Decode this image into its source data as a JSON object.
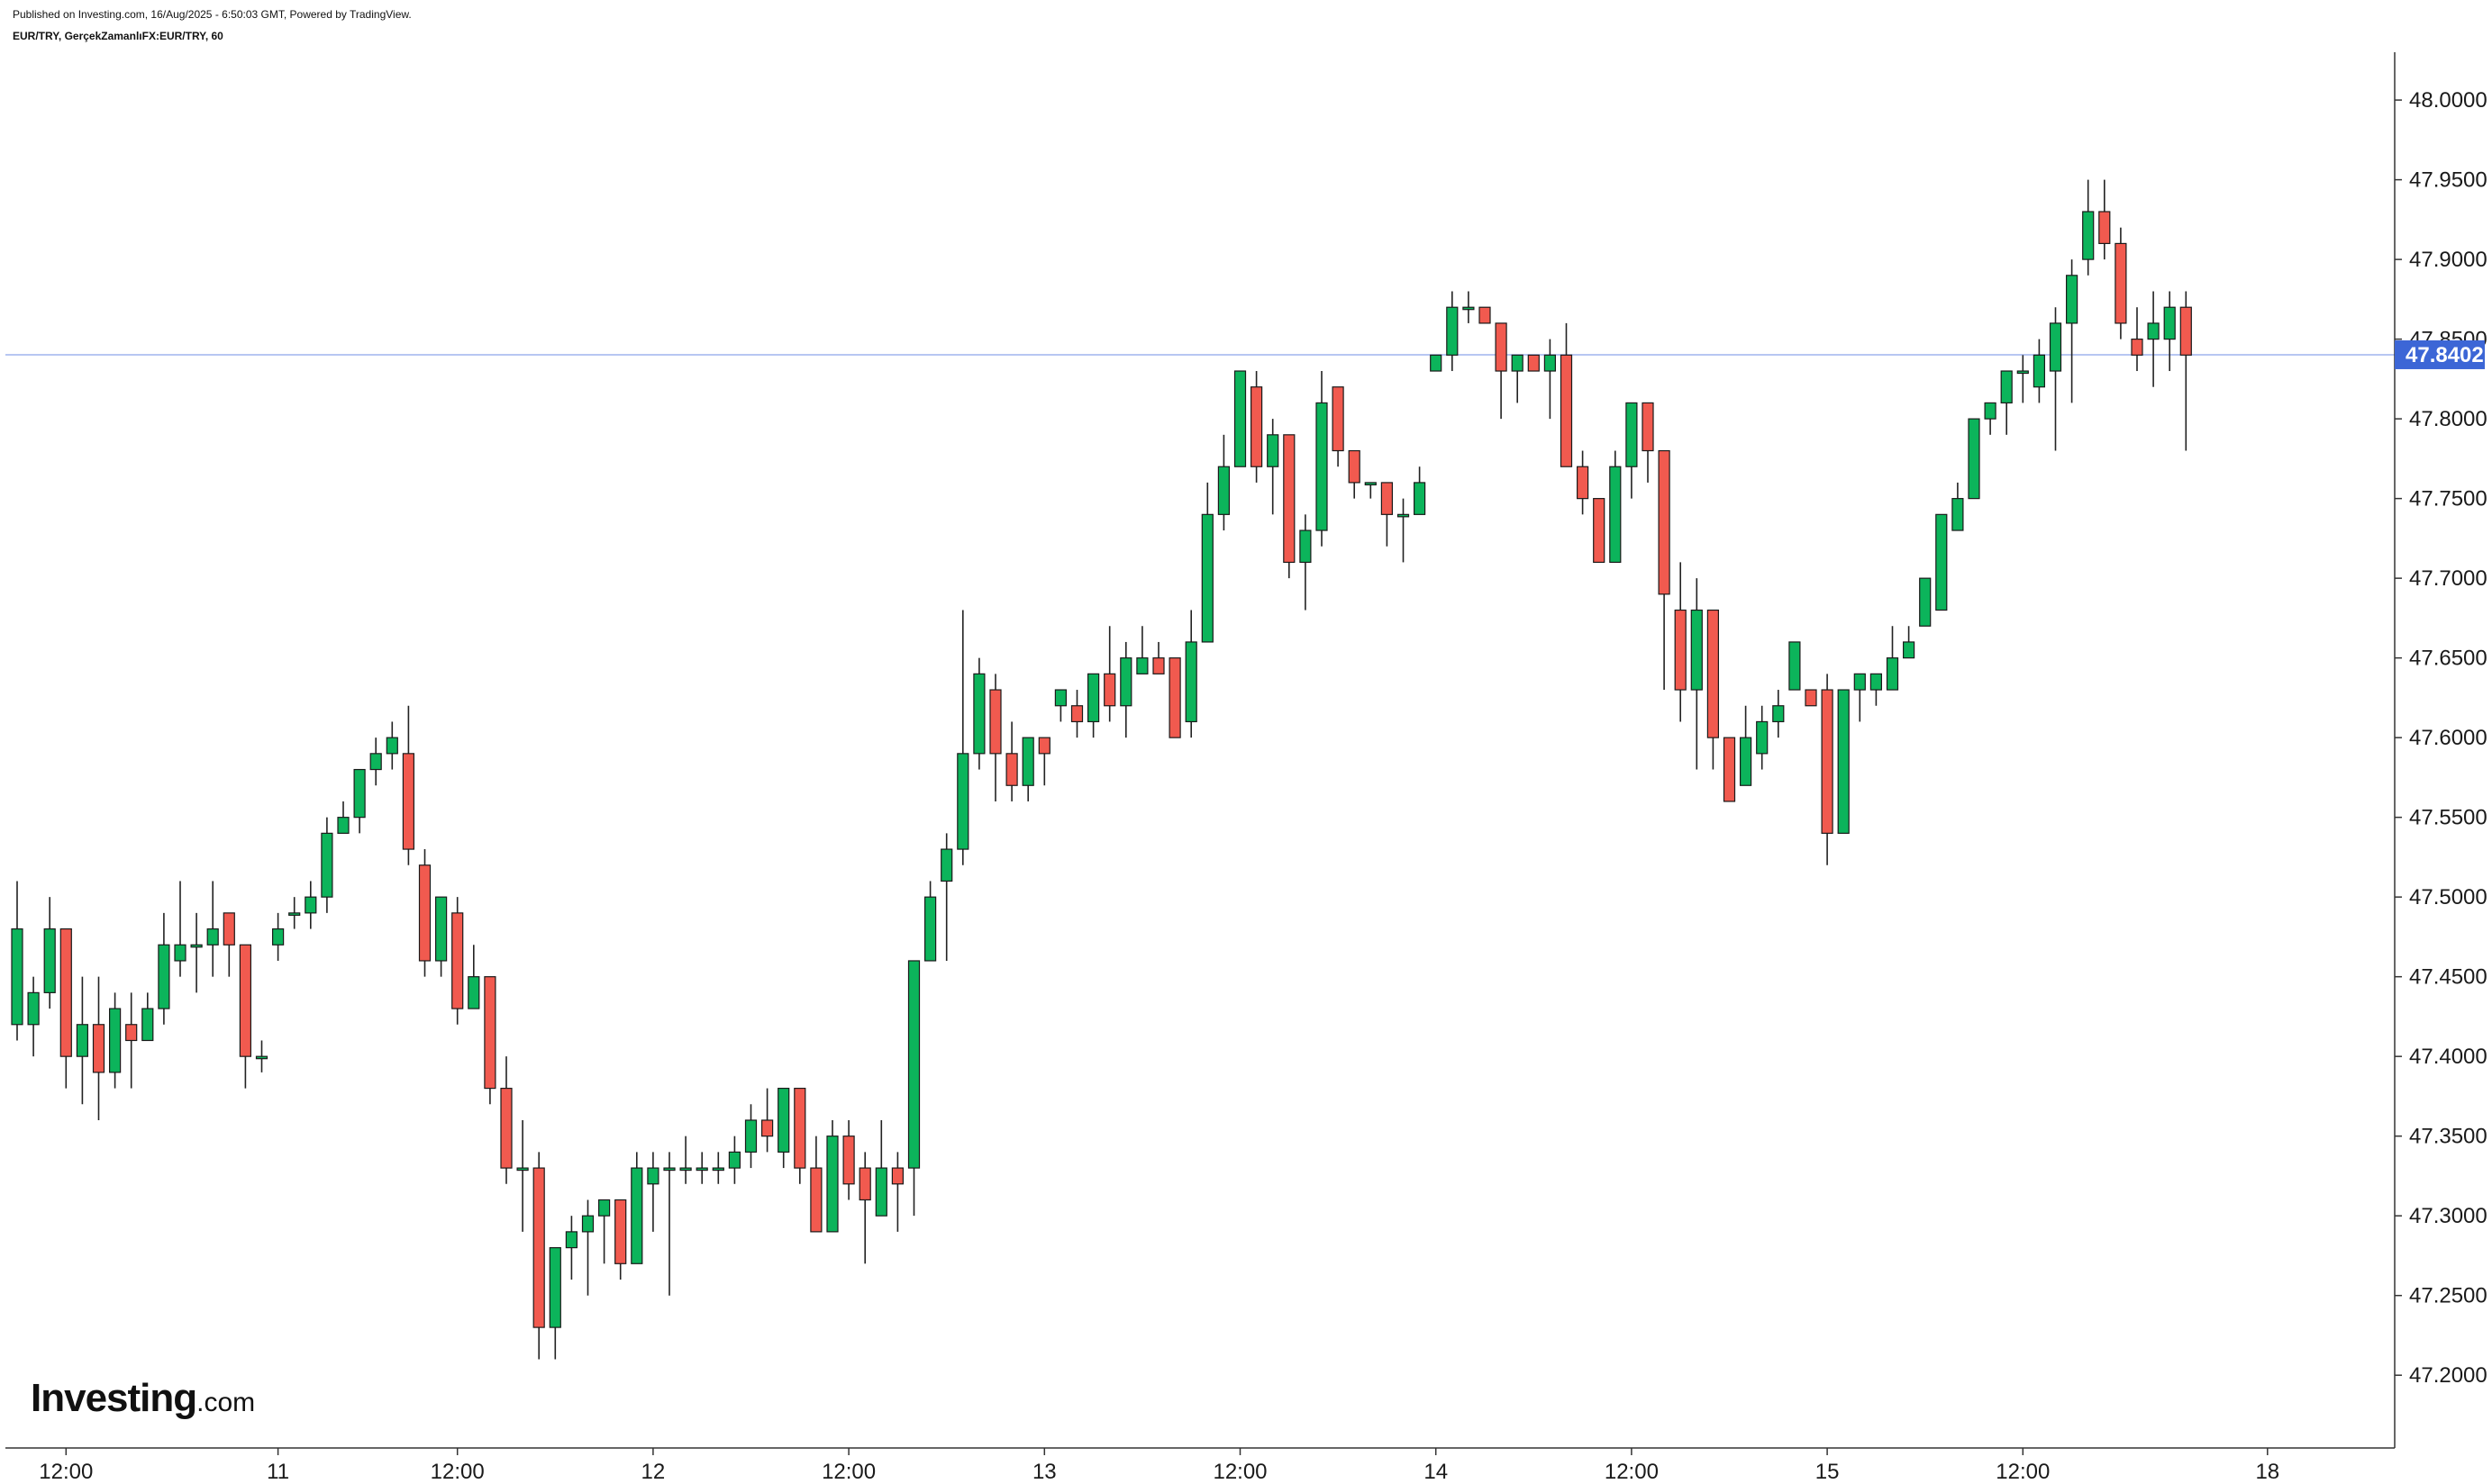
{
  "header": {
    "published": "Published on Investing.com, 16/Aug/2025 - 6:50:03 GMT, Powered by TradingView.",
    "symbol": "EUR/TRY, GerçekZamanlıFX:EUR/TRY, 60"
  },
  "logo": {
    "brand": "Investing",
    "domain": ".com"
  },
  "chart_data": {
    "type": "candlestick",
    "interval": "60",
    "ylim": [
      47.16,
      48.03
    ],
    "y_ticks": [
      "47.2000",
      "47.2500",
      "47.3000",
      "47.3500",
      "47.4000",
      "47.4500",
      "47.5000",
      "47.5500",
      "47.6000",
      "47.6500",
      "47.7000",
      "47.7500",
      "47.8000",
      "47.8500",
      "47.9000",
      "47.9500",
      "48.0000"
    ],
    "x_ticks": [
      "12:00",
      "11",
      "12:00",
      "12",
      "12:00",
      "13",
      "12:00",
      "14",
      "12:00",
      "15",
      "12:00",
      "18"
    ],
    "x_tick_bar_index": [
      3,
      16,
      27,
      39,
      51,
      63,
      75,
      87,
      99,
      111,
      123,
      138
    ],
    "current_price": "47.8402",
    "current_price_value": 47.8402,
    "grid": false,
    "colors": {
      "up": "#0cb45b",
      "down": "#f15a4f",
      "wick": "#222222",
      "price_line": "#9fb4ee",
      "price_label_bg": "#3c66d6",
      "axis": "#333333"
    },
    "candles": [
      {
        "o": 47.42,
        "h": 47.51,
        "l": 47.41,
        "c": 47.48
      },
      {
        "o": 47.42,
        "h": 47.45,
        "l": 47.4,
        "c": 47.44
      },
      {
        "o": 47.44,
        "h": 47.5,
        "l": 47.43,
        "c": 47.48
      },
      {
        "o": 47.48,
        "h": 47.48,
        "l": 47.38,
        "c": 47.4
      },
      {
        "o": 47.4,
        "h": 47.45,
        "l": 47.37,
        "c": 47.42
      },
      {
        "o": 47.42,
        "h": 47.45,
        "l": 47.36,
        "c": 47.39
      },
      {
        "o": 47.39,
        "h": 47.44,
        "l": 47.38,
        "c": 47.43
      },
      {
        "o": 47.42,
        "h": 47.44,
        "l": 47.38,
        "c": 47.41
      },
      {
        "o": 47.41,
        "h": 47.44,
        "l": 47.41,
        "c": 47.43
      },
      {
        "o": 47.43,
        "h": 47.49,
        "l": 47.42,
        "c": 47.47
      },
      {
        "o": 47.46,
        "h": 47.51,
        "l": 47.45,
        "c": 47.47
      },
      {
        "o": 47.47,
        "h": 47.49,
        "l": 47.44,
        "c": 47.47
      },
      {
        "o": 47.47,
        "h": 47.51,
        "l": 47.45,
        "c": 47.48
      },
      {
        "o": 47.49,
        "h": 47.49,
        "l": 47.45,
        "c": 47.47
      },
      {
        "o": 47.47,
        "h": 47.47,
        "l": 47.38,
        "c": 47.4
      },
      {
        "o": 47.4,
        "h": 47.41,
        "l": 47.39,
        "c": 47.4
      },
      {
        "o": 47.47,
        "h": 47.49,
        "l": 47.46,
        "c": 47.48
      },
      {
        "o": 47.49,
        "h": 47.5,
        "l": 47.48,
        "c": 47.49
      },
      {
        "o": 47.49,
        "h": 47.51,
        "l": 47.48,
        "c": 47.5
      },
      {
        "o": 47.5,
        "h": 47.55,
        "l": 47.49,
        "c": 47.54
      },
      {
        "o": 47.54,
        "h": 47.56,
        "l": 47.54,
        "c": 47.55
      },
      {
        "o": 47.55,
        "h": 47.58,
        "l": 47.54,
        "c": 47.58
      },
      {
        "o": 47.58,
        "h": 47.6,
        "l": 47.57,
        "c": 47.59
      },
      {
        "o": 47.59,
        "h": 47.61,
        "l": 47.58,
        "c": 47.6
      },
      {
        "o": 47.59,
        "h": 47.62,
        "l": 47.52,
        "c": 47.53
      },
      {
        "o": 47.52,
        "h": 47.53,
        "l": 47.45,
        "c": 47.46
      },
      {
        "o": 47.46,
        "h": 47.5,
        "l": 47.45,
        "c": 47.5
      },
      {
        "o": 47.49,
        "h": 47.5,
        "l": 47.42,
        "c": 47.43
      },
      {
        "o": 47.43,
        "h": 47.47,
        "l": 47.43,
        "c": 47.45
      },
      {
        "o": 47.45,
        "h": 47.45,
        "l": 47.37,
        "c": 47.38
      },
      {
        "o": 47.38,
        "h": 47.4,
        "l": 47.32,
        "c": 47.33
      },
      {
        "o": 47.33,
        "h": 47.36,
        "l": 47.29,
        "c": 47.33
      },
      {
        "o": 47.33,
        "h": 47.34,
        "l": 47.21,
        "c": 47.23
      },
      {
        "o": 47.23,
        "h": 47.28,
        "l": 47.21,
        "c": 47.28
      },
      {
        "o": 47.28,
        "h": 47.3,
        "l": 47.26,
        "c": 47.29
      },
      {
        "o": 47.29,
        "h": 47.31,
        "l": 47.25,
        "c": 47.3
      },
      {
        "o": 47.3,
        "h": 47.31,
        "l": 47.27,
        "c": 47.31
      },
      {
        "o": 47.31,
        "h": 47.31,
        "l": 47.26,
        "c": 47.27
      },
      {
        "o": 47.27,
        "h": 47.34,
        "l": 47.27,
        "c": 47.33
      },
      {
        "o": 47.32,
        "h": 47.34,
        "l": 47.29,
        "c": 47.33
      },
      {
        "o": 47.33,
        "h": 47.34,
        "l": 47.25,
        "c": 47.33
      },
      {
        "o": 47.33,
        "h": 47.35,
        "l": 47.32,
        "c": 47.33
      },
      {
        "o": 47.33,
        "h": 47.34,
        "l": 47.32,
        "c": 47.33
      },
      {
        "o": 47.33,
        "h": 47.34,
        "l": 47.32,
        "c": 47.33
      },
      {
        "o": 47.33,
        "h": 47.35,
        "l": 47.32,
        "c": 47.34
      },
      {
        "o": 47.34,
        "h": 47.37,
        "l": 47.33,
        "c": 47.36
      },
      {
        "o": 47.36,
        "h": 47.38,
        "l": 47.34,
        "c": 47.35
      },
      {
        "o": 47.34,
        "h": 47.38,
        "l": 47.33,
        "c": 47.38
      },
      {
        "o": 47.38,
        "h": 47.38,
        "l": 47.32,
        "c": 47.33
      },
      {
        "o": 47.33,
        "h": 47.35,
        "l": 47.29,
        "c": 47.29
      },
      {
        "o": 47.29,
        "h": 47.36,
        "l": 47.29,
        "c": 47.35
      },
      {
        "o": 47.35,
        "h": 47.36,
        "l": 47.31,
        "c": 47.32
      },
      {
        "o": 47.33,
        "h": 47.34,
        "l": 47.27,
        "c": 47.31
      },
      {
        "o": 47.3,
        "h": 47.36,
        "l": 47.3,
        "c": 47.33
      },
      {
        "o": 47.33,
        "h": 47.34,
        "l": 47.29,
        "c": 47.32
      },
      {
        "o": 47.33,
        "h": 47.46,
        "l": 47.3,
        "c": 47.46
      },
      {
        "o": 47.46,
        "h": 47.51,
        "l": 47.46,
        "c": 47.5
      },
      {
        "o": 47.51,
        "h": 47.54,
        "l": 47.46,
        "c": 47.53
      },
      {
        "o": 47.53,
        "h": 47.68,
        "l": 47.52,
        "c": 47.59
      },
      {
        "o": 47.59,
        "h": 47.65,
        "l": 47.58,
        "c": 47.64
      },
      {
        "o": 47.63,
        "h": 47.64,
        "l": 47.56,
        "c": 47.59
      },
      {
        "o": 47.59,
        "h": 47.61,
        "l": 47.56,
        "c": 47.57
      },
      {
        "o": 47.57,
        "h": 47.6,
        "l": 47.56,
        "c": 47.6
      },
      {
        "o": 47.6,
        "h": 47.6,
        "l": 47.57,
        "c": 47.59
      },
      {
        "o": 47.62,
        "h": 47.63,
        "l": 47.61,
        "c": 47.63
      },
      {
        "o": 47.62,
        "h": 47.63,
        "l": 47.6,
        "c": 47.61
      },
      {
        "o": 47.61,
        "h": 47.64,
        "l": 47.6,
        "c": 47.64
      },
      {
        "o": 47.64,
        "h": 47.67,
        "l": 47.61,
        "c": 47.62
      },
      {
        "o": 47.62,
        "h": 47.66,
        "l": 47.6,
        "c": 47.65
      },
      {
        "o": 47.64,
        "h": 47.67,
        "l": 47.64,
        "c": 47.65
      },
      {
        "o": 47.65,
        "h": 47.66,
        "l": 47.64,
        "c": 47.64
      },
      {
        "o": 47.65,
        "h": 47.65,
        "l": 47.6,
        "c": 47.6
      },
      {
        "o": 47.61,
        "h": 47.68,
        "l": 47.6,
        "c": 47.66
      },
      {
        "o": 47.66,
        "h": 47.76,
        "l": 47.66,
        "c": 47.74
      },
      {
        "o": 47.74,
        "h": 47.79,
        "l": 47.73,
        "c": 47.77
      },
      {
        "o": 47.77,
        "h": 47.83,
        "l": 47.77,
        "c": 47.83
      },
      {
        "o": 47.82,
        "h": 47.83,
        "l": 47.76,
        "c": 47.77
      },
      {
        "o": 47.77,
        "h": 47.8,
        "l": 47.74,
        "c": 47.79
      },
      {
        "o": 47.79,
        "h": 47.79,
        "l": 47.7,
        "c": 47.71
      },
      {
        "o": 47.71,
        "h": 47.74,
        "l": 47.68,
        "c": 47.73
      },
      {
        "o": 47.73,
        "h": 47.83,
        "l": 47.72,
        "c": 47.81
      },
      {
        "o": 47.82,
        "h": 47.82,
        "l": 47.77,
        "c": 47.78
      },
      {
        "o": 47.78,
        "h": 47.78,
        "l": 47.75,
        "c": 47.76
      },
      {
        "o": 47.76,
        "h": 47.76,
        "l": 47.75,
        "c": 47.76
      },
      {
        "o": 47.76,
        "h": 47.76,
        "l": 47.72,
        "c": 47.74
      },
      {
        "o": 47.74,
        "h": 47.75,
        "l": 47.71,
        "c": 47.74
      },
      {
        "o": 47.74,
        "h": 47.77,
        "l": 47.74,
        "c": 47.76
      },
      {
        "o": 47.83,
        "h": 47.84,
        "l": 47.83,
        "c": 47.84
      },
      {
        "o": 47.84,
        "h": 47.88,
        "l": 47.83,
        "c": 47.87
      },
      {
        "o": 47.87,
        "h": 47.88,
        "l": 47.86,
        "c": 47.87
      },
      {
        "o": 47.87,
        "h": 47.87,
        "l": 47.86,
        "c": 47.86
      },
      {
        "o": 47.86,
        "h": 47.86,
        "l": 47.8,
        "c": 47.83
      },
      {
        "o": 47.83,
        "h": 47.84,
        "l": 47.81,
        "c": 47.84
      },
      {
        "o": 47.84,
        "h": 47.84,
        "l": 47.83,
        "c": 47.83
      },
      {
        "o": 47.83,
        "h": 47.85,
        "l": 47.8,
        "c": 47.84
      },
      {
        "o": 47.84,
        "h": 47.86,
        "l": 47.77,
        "c": 47.77
      },
      {
        "o": 47.77,
        "h": 47.78,
        "l": 47.74,
        "c": 47.75
      },
      {
        "o": 47.75,
        "h": 47.75,
        "l": 47.71,
        "c": 47.71
      },
      {
        "o": 47.71,
        "h": 47.78,
        "l": 47.71,
        "c": 47.77
      },
      {
        "o": 47.77,
        "h": 47.81,
        "l": 47.75,
        "c": 47.81
      },
      {
        "o": 47.81,
        "h": 47.81,
        "l": 47.76,
        "c": 47.78
      },
      {
        "o": 47.78,
        "h": 47.78,
        "l": 47.63,
        "c": 47.69
      },
      {
        "o": 47.68,
        "h": 47.71,
        "l": 47.61,
        "c": 47.63
      },
      {
        "o": 47.63,
        "h": 47.7,
        "l": 47.58,
        "c": 47.68
      },
      {
        "o": 47.68,
        "h": 47.68,
        "l": 47.58,
        "c": 47.6
      },
      {
        "o": 47.6,
        "h": 47.6,
        "l": 47.56,
        "c": 47.56
      },
      {
        "o": 47.57,
        "h": 47.62,
        "l": 47.57,
        "c": 47.6
      },
      {
        "o": 47.59,
        "h": 47.62,
        "l": 47.58,
        "c": 47.61
      },
      {
        "o": 47.61,
        "h": 47.63,
        "l": 47.6,
        "c": 47.62
      },
      {
        "o": 47.63,
        "h": 47.66,
        "l": 47.63,
        "c": 47.66
      },
      {
        "o": 47.63,
        "h": 47.63,
        "l": 47.62,
        "c": 47.62
      },
      {
        "o": 47.63,
        "h": 47.64,
        "l": 47.52,
        "c": 47.54
      },
      {
        "o": 47.54,
        "h": 47.63,
        "l": 47.54,
        "c": 47.63
      },
      {
        "o": 47.63,
        "h": 47.64,
        "l": 47.61,
        "c": 47.64
      },
      {
        "o": 47.63,
        "h": 47.64,
        "l": 47.62,
        "c": 47.64
      },
      {
        "o": 47.63,
        "h": 47.67,
        "l": 47.63,
        "c": 47.65
      },
      {
        "o": 47.65,
        "h": 47.67,
        "l": 47.65,
        "c": 47.66
      },
      {
        "o": 47.67,
        "h": 47.7,
        "l": 47.67,
        "c": 47.7
      },
      {
        "o": 47.68,
        "h": 47.74,
        "l": 47.68,
        "c": 47.74
      },
      {
        "o": 47.73,
        "h": 47.76,
        "l": 47.73,
        "c": 47.75
      },
      {
        "o": 47.75,
        "h": 47.8,
        "l": 47.75,
        "c": 47.8
      },
      {
        "o": 47.8,
        "h": 47.81,
        "l": 47.79,
        "c": 47.81
      },
      {
        "o": 47.81,
        "h": 47.83,
        "l": 47.79,
        "c": 47.83
      },
      {
        "o": 47.83,
        "h": 47.84,
        "l": 47.81,
        "c": 47.83
      },
      {
        "o": 47.82,
        "h": 47.85,
        "l": 47.81,
        "c": 47.84
      },
      {
        "o": 47.83,
        "h": 47.87,
        "l": 47.78,
        "c": 47.86
      },
      {
        "o": 47.86,
        "h": 47.9,
        "l": 47.81,
        "c": 47.89
      },
      {
        "o": 47.9,
        "h": 47.95,
        "l": 47.89,
        "c": 47.93
      },
      {
        "o": 47.93,
        "h": 47.95,
        "l": 47.9,
        "c": 47.91
      },
      {
        "o": 47.91,
        "h": 47.92,
        "l": 47.85,
        "c": 47.86
      },
      {
        "o": 47.85,
        "h": 47.87,
        "l": 47.83,
        "c": 47.84
      },
      {
        "o": 47.85,
        "h": 47.88,
        "l": 47.82,
        "c": 47.86
      },
      {
        "o": 47.85,
        "h": 47.88,
        "l": 47.83,
        "c": 47.87
      },
      {
        "o": 47.87,
        "h": 47.88,
        "l": 47.78,
        "c": 47.84
      }
    ]
  }
}
